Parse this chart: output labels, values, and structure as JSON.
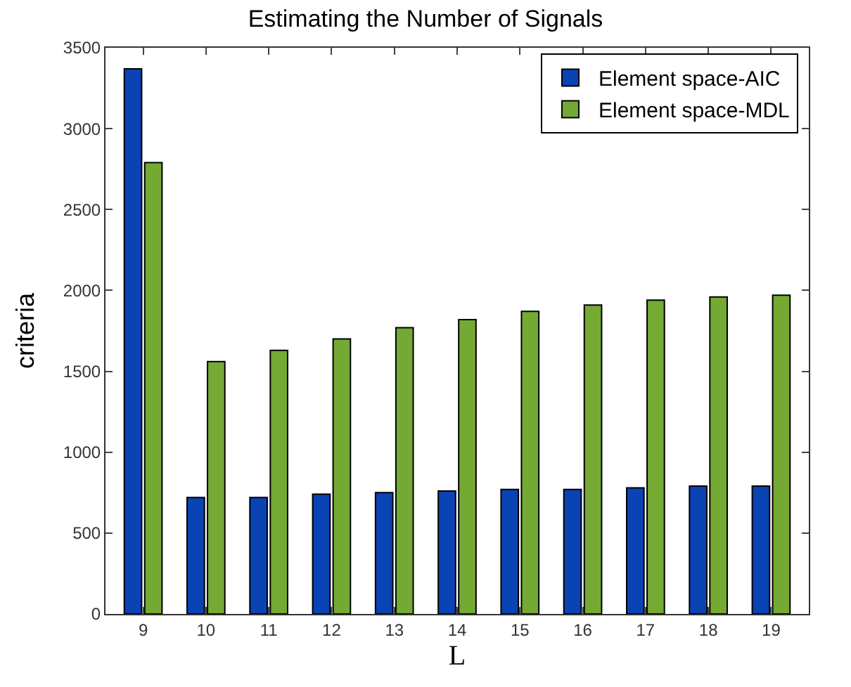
{
  "chart_data": {
    "type": "bar",
    "title": "Estimating the Number of Signals",
    "xlabel": "L",
    "ylabel": "criteria",
    "categories": [
      "9",
      "10",
      "11",
      "12",
      "13",
      "14",
      "15",
      "16",
      "17",
      "18",
      "19"
    ],
    "series": [
      {
        "name": "Element space-AIC",
        "color": "#0a44b4",
        "values": [
          3370,
          720,
          720,
          740,
          750,
          760,
          770,
          770,
          780,
          790,
          790
        ]
      },
      {
        "name": "Element space-MDL",
        "color": "#74aa34",
        "values": [
          2790,
          1560,
          1630,
          1700,
          1770,
          1820,
          1870,
          1910,
          1940,
          1960,
          1970
        ]
      }
    ],
    "ylim": [
      0,
      3500
    ],
    "yticks": [
      0,
      500,
      1000,
      1500,
      2000,
      2500,
      3000,
      3500
    ],
    "legend": "top right"
  }
}
